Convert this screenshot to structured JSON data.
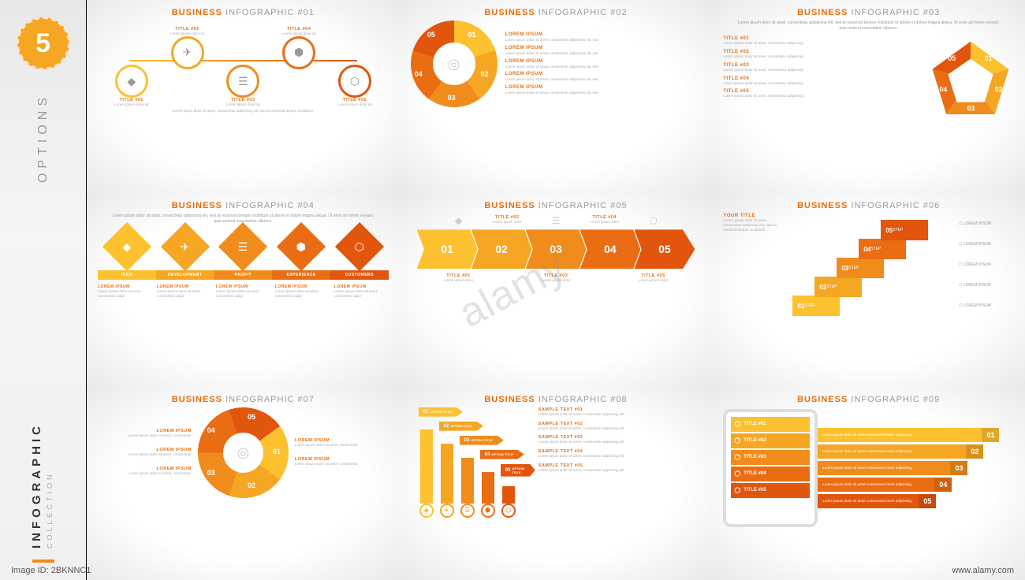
{
  "palette": {
    "c1": "#fdc02f",
    "c2": "#f5a623",
    "c3": "#f08c1c",
    "c4": "#ea6d13",
    "c5": "#e2550d",
    "accent": "#e86c0a",
    "grey": "#9a9a9a",
    "lightgrey": "#cccccc",
    "bg": "#ffffff"
  },
  "watermark": {
    "center": "alamy",
    "left": "Image ID: 2BKNNC1",
    "right": "www.alamy.com"
  },
  "sidebar": {
    "badge": "5",
    "options": "OPTIONS",
    "infographic": "INFOGRAPHIC",
    "collection": "COLLECTION"
  },
  "lorem": "Lorem ipsum dolor sit amet, consectetur adipiscing elit, sed do eiusmod tempor incididunt.",
  "lorem_long": "Lorem ipsum dolor sit amet, consectetur adipiscing elit, sed do eiusmod tempor incididunt ut labore et dolore magna aliqua. Ut enim ad minim veniam, quis nostrud exercitation ullamco.",
  "titles": {
    "prefix": "BUSINESS",
    "word": "INFOGRAPHIC",
    "n": [
      "#01",
      "#02",
      "#03",
      "#04",
      "#05",
      "#06",
      "#07",
      "#08",
      "#09"
    ]
  },
  "item_titles": [
    "TITLE #01",
    "TITLE #02",
    "TITLE #03",
    "TITLE #04",
    "TITLE #05"
  ],
  "card4": {
    "labels": [
      "IDEA",
      "DEVELOPMENT",
      "PROFIT",
      "EXPERIENCE",
      "CUSTOMERS"
    ]
  },
  "card6": {
    "your_title": "YOUR TITLE",
    "step": "STEP",
    "lorem": "LOREM IPSUM"
  },
  "card8": {
    "sample": "SAMPLE TEXT",
    "option": "OPTION TITLE"
  },
  "card9": {
    "lorem": "Lorem ipsum dolor sit amet consectetur lorem adipiscing."
  },
  "nums": [
    "01",
    "02",
    "03",
    "04",
    "05"
  ]
}
